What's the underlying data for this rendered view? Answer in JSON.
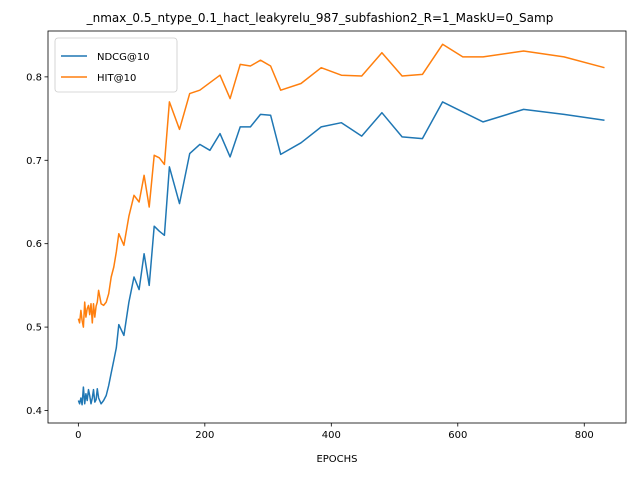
{
  "chart_data": {
    "type": "line",
    "title": "_nmax_0.5_ntype_0.1_hact_leakyrelu_987_subfashion2_R=1_MaskU=0_Samp",
    "xlabel": "EPOCHS",
    "ylabel": "",
    "xlim": [
      -48,
      866
    ],
    "ylim": [
      0.385,
      0.855
    ],
    "xticks": [
      0,
      200,
      400,
      600,
      800
    ],
    "yticks": [
      0.4,
      0.5,
      0.6,
      0.7,
      0.8
    ],
    "grid": false,
    "legend": "upper-left",
    "series": [
      {
        "name": "NDCG@10",
        "color": "#1f77b4",
        "x": [
          0,
          2,
          4,
          6,
          8,
          10,
          12,
          14,
          16,
          18,
          20,
          22,
          24,
          26,
          28,
          30,
          32,
          36,
          40,
          44,
          48,
          52,
          56,
          60,
          64,
          72,
          80,
          88,
          96,
          104,
          112,
          120,
          128,
          136,
          144,
          160,
          176,
          192,
          208,
          224,
          240,
          256,
          272,
          288,
          304,
          320,
          352,
          384,
          416,
          448,
          480,
          512,
          544,
          576,
          608,
          640,
          704,
          768,
          832
        ],
        "y": [
          0.412,
          0.408,
          0.415,
          0.407,
          0.428,
          0.408,
          0.42,
          0.412,
          0.425,
          0.418,
          0.408,
          0.415,
          0.425,
          0.41,
          0.413,
          0.426,
          0.415,
          0.408,
          0.412,
          0.418,
          0.43,
          0.445,
          0.46,
          0.475,
          0.503,
          0.49,
          0.53,
          0.56,
          0.545,
          0.588,
          0.55,
          0.621,
          0.615,
          0.61,
          0.692,
          0.648,
          0.708,
          0.719,
          0.712,
          0.732,
          0.704,
          0.74,
          0.74,
          0.755,
          0.754,
          0.707,
          0.721,
          0.74,
          0.745,
          0.729,
          0.757,
          0.728,
          0.726,
          0.77,
          0.758,
          0.746,
          0.761,
          0.755,
          0.748
        ]
      },
      {
        "name": "HIT@10",
        "color": "#ff7f0e",
        "x": [
          0,
          2,
          4,
          6,
          8,
          10,
          12,
          14,
          16,
          18,
          20,
          22,
          24,
          26,
          28,
          30,
          32,
          36,
          40,
          44,
          48,
          52,
          56,
          60,
          64,
          72,
          80,
          88,
          96,
          104,
          112,
          120,
          128,
          136,
          144,
          160,
          176,
          192,
          208,
          224,
          240,
          256,
          272,
          288,
          304,
          320,
          352,
          384,
          416,
          448,
          480,
          512,
          544,
          576,
          608,
          640,
          704,
          768,
          832
        ],
        "y": [
          0.51,
          0.505,
          0.52,
          0.508,
          0.5,
          0.53,
          0.512,
          0.522,
          0.526,
          0.515,
          0.528,
          0.505,
          0.528,
          0.512,
          0.525,
          0.53,
          0.544,
          0.528,
          0.526,
          0.53,
          0.54,
          0.56,
          0.572,
          0.59,
          0.612,
          0.598,
          0.633,
          0.658,
          0.65,
          0.682,
          0.644,
          0.706,
          0.703,
          0.695,
          0.77,
          0.737,
          0.78,
          0.784,
          0.793,
          0.802,
          0.774,
          0.815,
          0.813,
          0.82,
          0.813,
          0.784,
          0.792,
          0.811,
          0.802,
          0.801,
          0.829,
          0.801,
          0.803,
          0.839,
          0.824,
          0.824,
          0.831,
          0.824,
          0.811
        ]
      }
    ]
  }
}
